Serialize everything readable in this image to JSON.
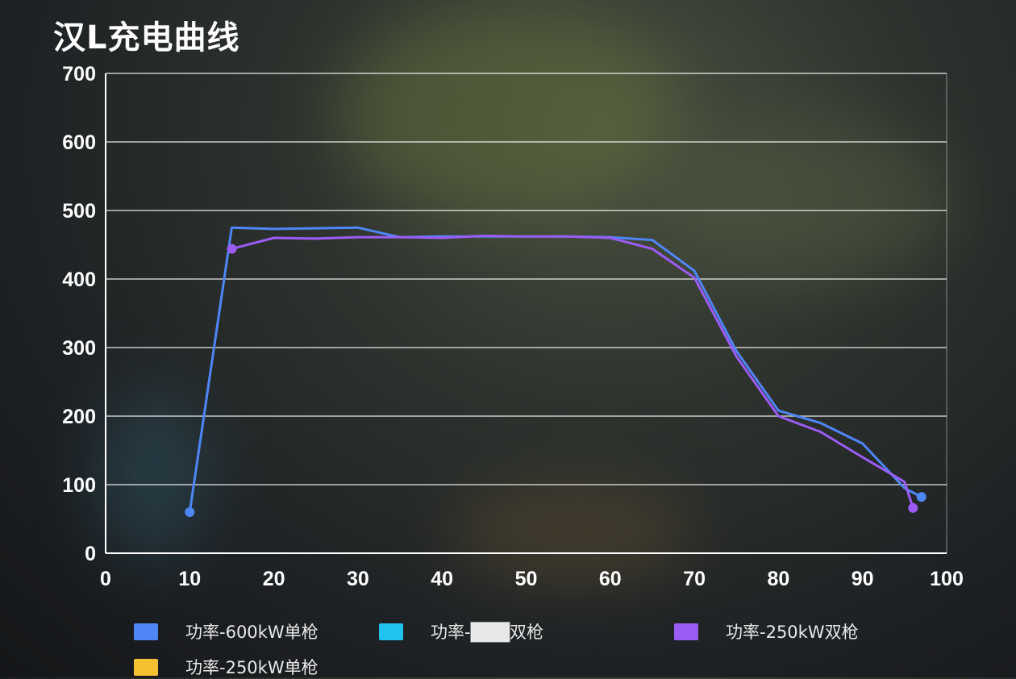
{
  "title": "汉L充电曲线",
  "chart_data": {
    "type": "line",
    "title": "汉L充电曲线",
    "xlabel": "",
    "ylabel": "",
    "xlim": [
      0,
      100
    ],
    "ylim": [
      0,
      700
    ],
    "x_ticks": [
      "0",
      "10",
      "20",
      "30",
      "40",
      "50",
      "60",
      "70",
      "80",
      "90",
      "100"
    ],
    "y_ticks": [
      "0",
      "100",
      "200",
      "300",
      "400",
      "500",
      "600",
      "700"
    ],
    "grid": true,
    "legend_position": "bottom",
    "series": [
      {
        "name": "功率-600kW单枪",
        "color": "#4f86f7",
        "x": [
          10,
          15,
          20,
          25,
          30,
          35,
          40,
          45,
          50,
          55,
          60,
          65,
          70,
          75,
          80,
          85,
          90,
          95,
          97
        ],
        "y": [
          60,
          475,
          473,
          474,
          475,
          461,
          462,
          462,
          462,
          462,
          461,
          457,
          412,
          295,
          208,
          190,
          160,
          95,
          82
        ]
      },
      {
        "name": "功率-███双枪",
        "color": "#1fc3ee",
        "x": [],
        "y": []
      },
      {
        "name": "功率-250kW双枪",
        "color": "#9b5cf5",
        "x": [
          15,
          20,
          25,
          30,
          35,
          40,
          45,
          50,
          55,
          60,
          65,
          70,
          75,
          80,
          85,
          90,
          95,
          96
        ],
        "y": [
          444,
          460,
          459,
          461,
          461,
          460,
          463,
          462,
          462,
          460,
          444,
          402,
          287,
          200,
          177,
          140,
          104,
          66
        ]
      },
      {
        "name": "功率-250kW单枪",
        "color": "#f5c031",
        "x": [],
        "y": []
      }
    ]
  }
}
